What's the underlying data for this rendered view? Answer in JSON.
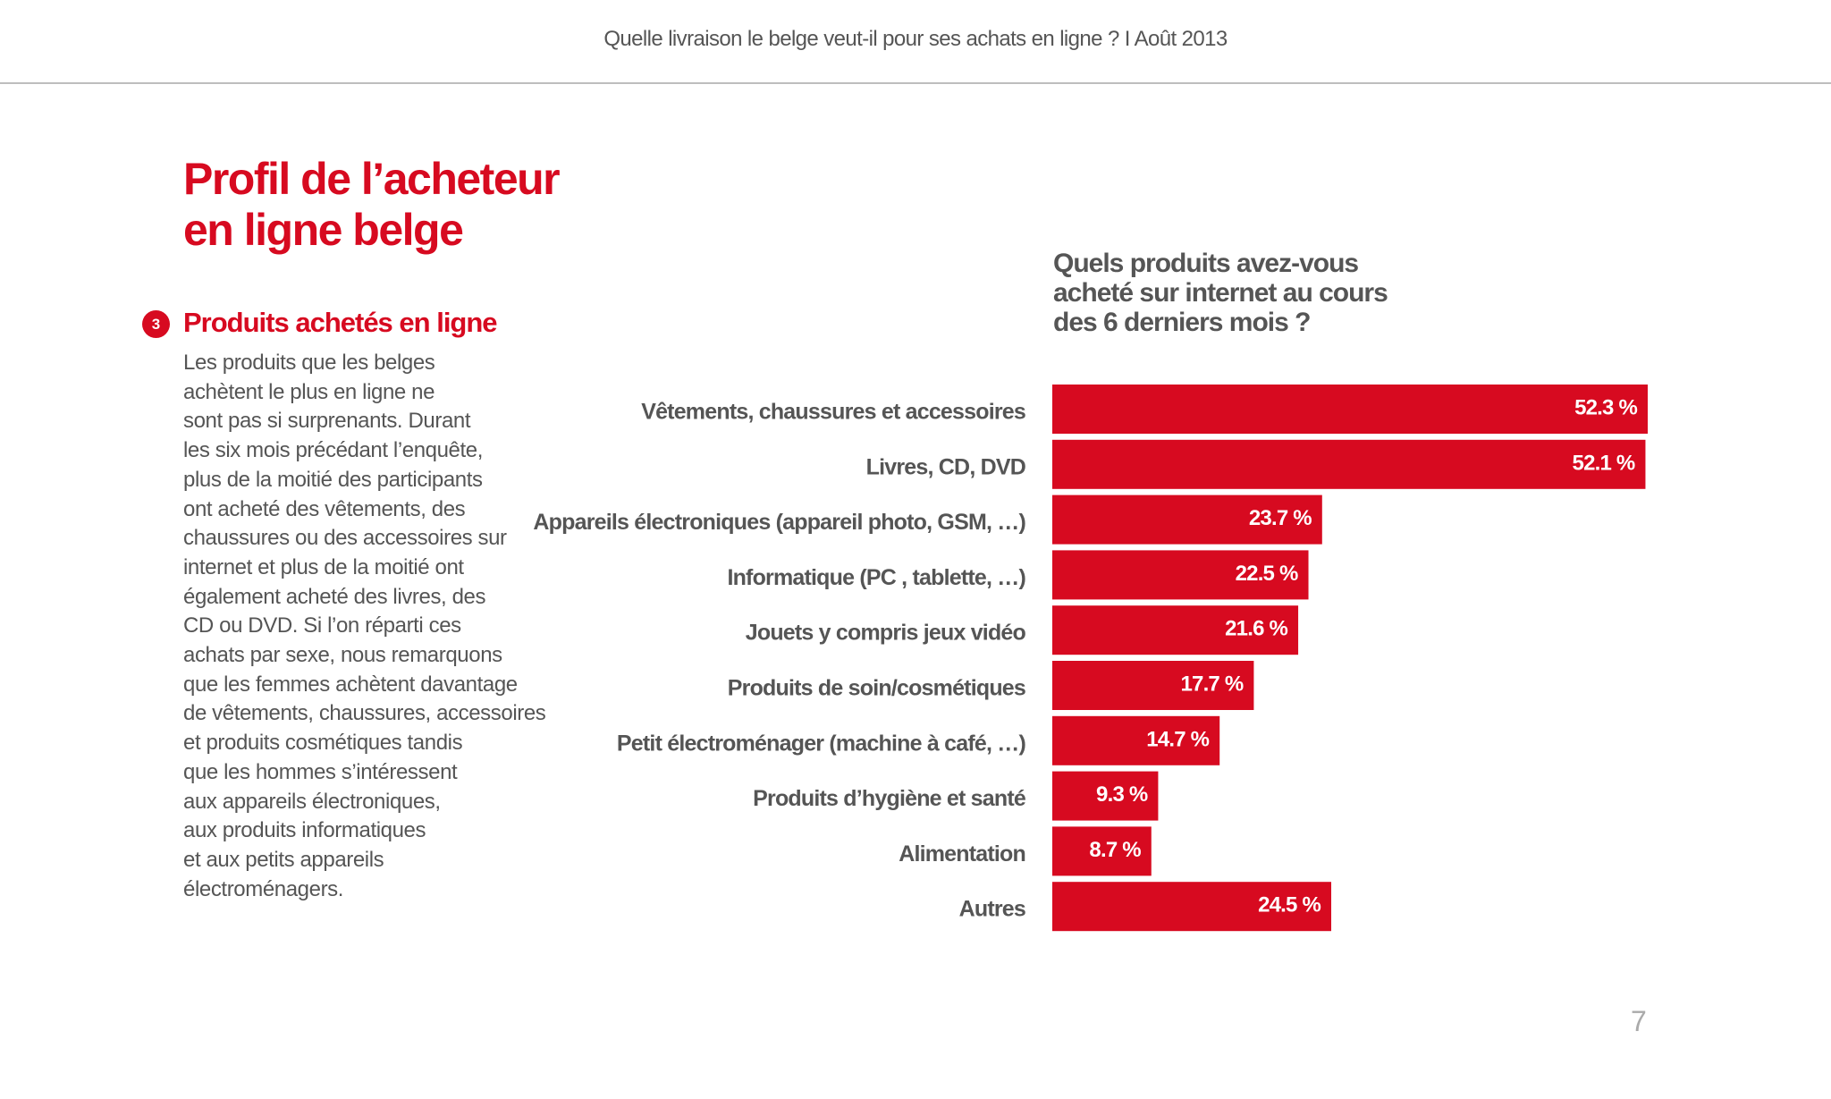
{
  "header": {
    "title": "Quelle livraison le belge veut-il pour ses achats en ligne ? I  Août 2013"
  },
  "page": {
    "title_lines": [
      "Profil de l’acheteur",
      "en ligne belge"
    ],
    "section_number": "3",
    "section_title": "Produits achetés en ligne",
    "body_lines": [
      "Les produits que les belges",
      "achètent le plus en ligne ne",
      "sont pas si surprenants. Durant",
      "les six mois précédant l’enquête,",
      "plus de la moitié des participants",
      "ont acheté des vêtements, des",
      "chaussures ou des accessoires sur",
      "internet et plus de la moitié ont",
      "également acheté des livres, des",
      "CD ou DVD. Si l’on réparti ces",
      "achats par sexe, nous remarquons",
      "que les femmes achètent davantage",
      "de vêtements, chaussures, accessoires",
      "et produits cosmétiques tandis",
      "que les hommes s’intéressent",
      "aux appareils électroniques,",
      "aux produits informatiques",
      "et aux petits appareils",
      "électroménagers."
    ],
    "page_number": "7"
  },
  "colors": {
    "accent": "#d70a20",
    "label": "#555555"
  },
  "chart_data": {
    "type": "bar",
    "orientation": "horizontal",
    "title_lines": [
      "Quels produits avez-vous",
      "acheté sur internet au cours",
      "des 6 derniers mois ?"
    ],
    "categories": [
      "Vêtements, chaussures et accessoires",
      "Livres, CD, DVD",
      "Appareils électroniques (appareil photo, GSM, …)",
      "Informatique (PC , tablette, …)",
      "Jouets y compris jeux vidéo",
      "Produits de soin/cosmétiques",
      "Petit électroménager (machine à café, …)",
      "Produits d’hygiène et santé",
      "Alimentation",
      "Autres"
    ],
    "values": [
      52.3,
      52.1,
      23.7,
      22.5,
      21.6,
      17.7,
      14.7,
      9.3,
      8.7,
      24.5
    ],
    "value_labels": [
      "52.3 %",
      "52.1 %",
      "23.7 %",
      "22.5 %",
      "21.6 %",
      "17.7 %",
      "14.7 %",
      "9.3 %",
      "8.7 %",
      "24.5 %"
    ],
    "xlim": [
      0,
      52.3
    ],
    "grid": false,
    "legend": "none"
  }
}
